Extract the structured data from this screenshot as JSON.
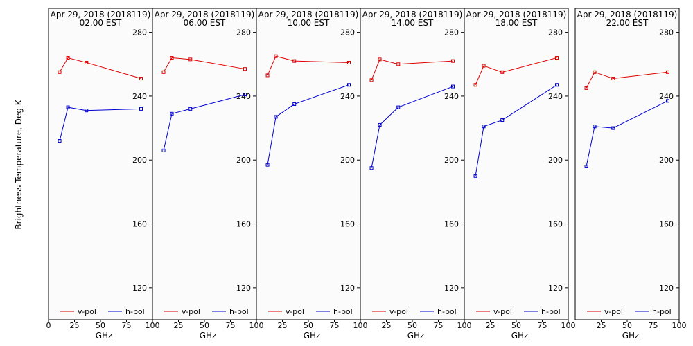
{
  "chart_data": {
    "type": "line",
    "ylabel": "Brightness Temperature, Deg K",
    "xlabel": "GHz",
    "xlim": [
      0,
      100
    ],
    "ylim": [
      100,
      295
    ],
    "x_ticks": [
      0,
      25,
      50,
      75,
      100
    ],
    "x_tick_labels": [
      "0",
      "25",
      "50",
      "75",
      "100"
    ],
    "y_ticks": [
      120,
      160,
      200,
      240,
      280
    ],
    "y_tick_labels": [
      "120",
      "160",
      "200",
      "240",
      "280"
    ],
    "x": [
      10.7,
      18.7,
      36.5,
      89.0
    ],
    "legend": [
      "v-pol",
      "h-pol"
    ],
    "legend_placement": "bottom",
    "colors": {
      "v-pol": "#e00000",
      "h-pol": "#0000d0"
    },
    "panels": [
      {
        "title_line1": "Apr 29, 2018 (2018119)",
        "title_line2": "02.00 EST",
        "series": [
          {
            "name": "v-pol",
            "values": [
              255,
              264,
              261,
              251
            ]
          },
          {
            "name": "h-pol",
            "values": [
              212,
              233,
              231,
              232
            ]
          }
        ]
      },
      {
        "title_line1": "Apr 29, 2018 (2018119)",
        "title_line2": "06.00 EST",
        "series": [
          {
            "name": "v-pol",
            "values": [
              255,
              264,
              263,
              257
            ]
          },
          {
            "name": "h-pol",
            "values": [
              206,
              229,
              232,
              241
            ]
          }
        ]
      },
      {
        "title_line1": "Apr 29, 2018 (2018119)",
        "title_line2": "10.00 EST",
        "series": [
          {
            "name": "v-pol",
            "values": [
              253,
              265,
              262,
              261
            ]
          },
          {
            "name": "h-pol",
            "values": [
              197,
              227,
              235,
              247
            ]
          }
        ]
      },
      {
        "title_line1": "Apr 29, 2018 (2018119)",
        "title_line2": "14.00 EST",
        "series": [
          {
            "name": "v-pol",
            "values": [
              250,
              263,
              260,
              262
            ]
          },
          {
            "name": "h-pol",
            "values": [
              195,
              222,
              233,
              246
            ]
          }
        ]
      },
      {
        "title_line1": "Apr 29, 2018 (2018119)",
        "title_line2": "18.00 EST",
        "series": [
          {
            "name": "v-pol",
            "values": [
              247,
              259,
              255,
              264
            ]
          },
          {
            "name": "h-pol",
            "values": [
              190,
              221,
              225,
              247
            ]
          }
        ]
      },
      {
        "title_line1": "Apr 29, 2018 (2018119)",
        "title_line2": "22.00 EST",
        "series": [
          {
            "name": "v-pol",
            "values": [
              245,
              255,
              251,
              255
            ]
          },
          {
            "name": "h-pol",
            "values": [
              196,
              221,
              220,
              237
            ]
          }
        ]
      }
    ]
  }
}
